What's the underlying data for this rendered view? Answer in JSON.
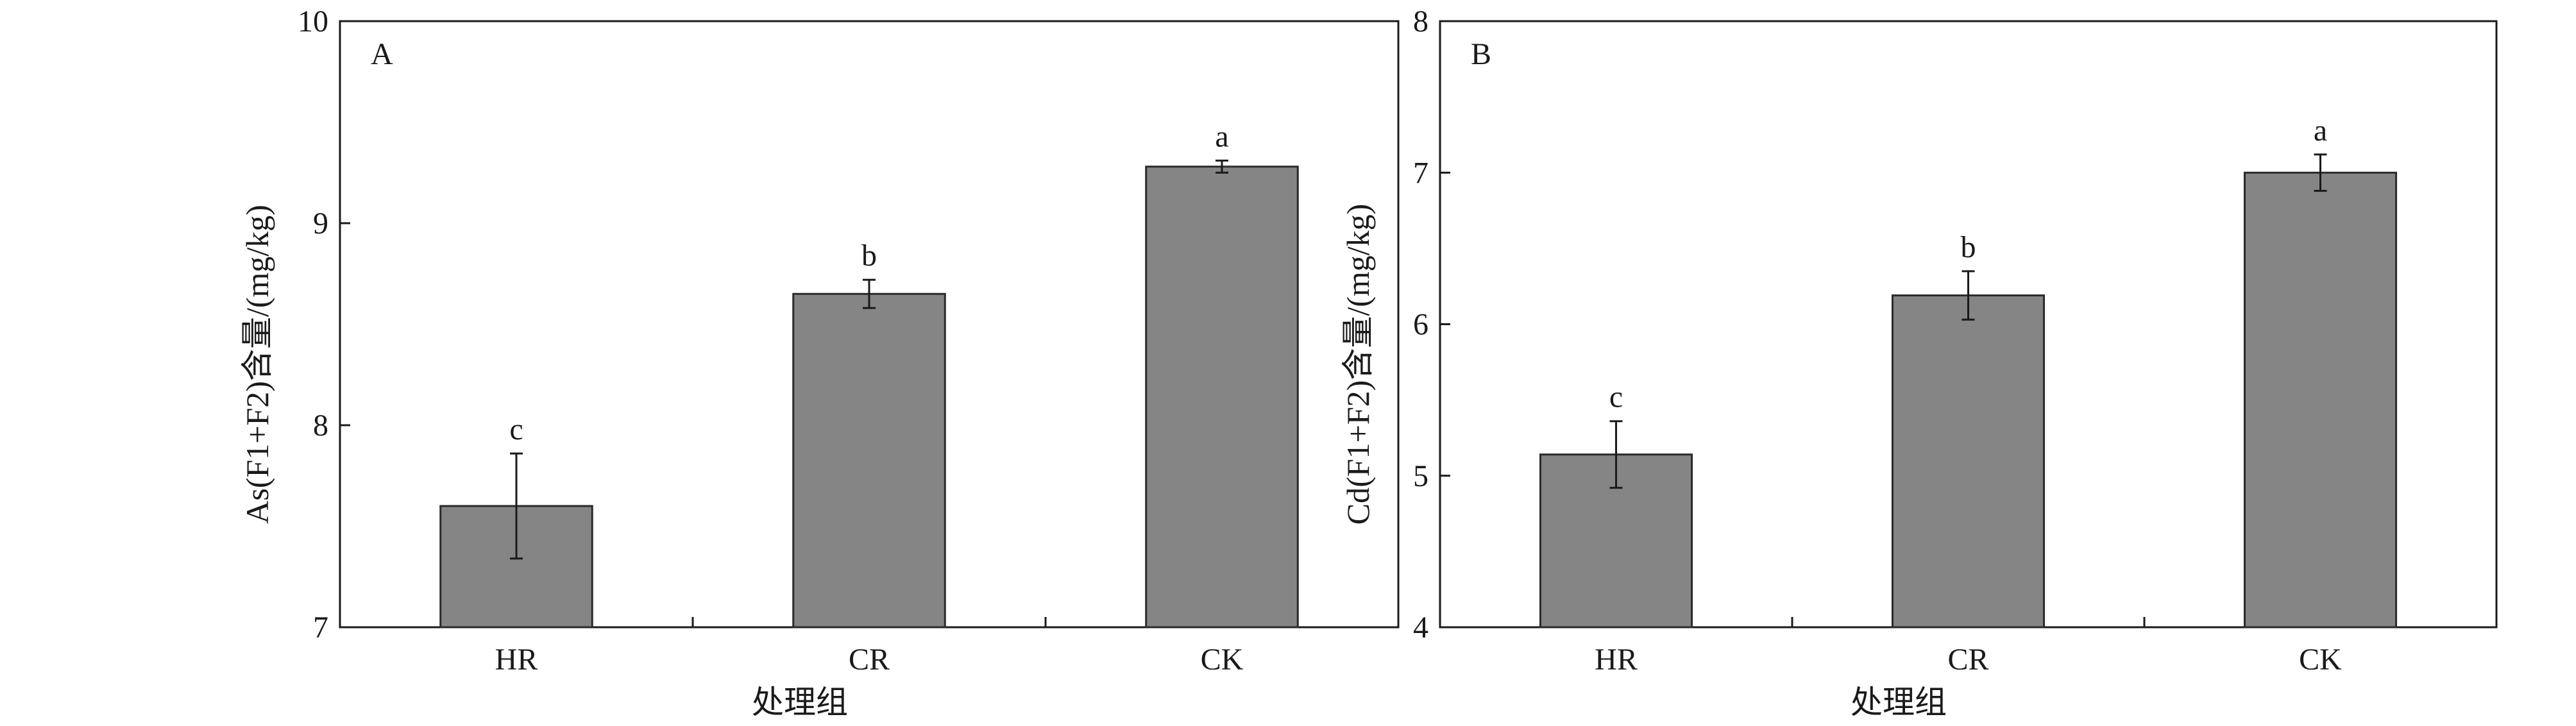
{
  "figure": {
    "bar_color": "#858585",
    "bar_edge": "#2a2a2a",
    "axis_color": "#1a1a1a"
  },
  "chart_data": [
    {
      "type": "bar",
      "panel_label": "A",
      "title": "",
      "categories": [
        "HR",
        "CR",
        "CK"
      ],
      "values": [
        7.6,
        8.65,
        9.28
      ],
      "errors": [
        0.26,
        0.07,
        0.03
      ],
      "letters": [
        "c",
        "b",
        "a"
      ],
      "xlabel": "处理组",
      "ylabel": "As(F1+F2)含量/(mg/kg)",
      "ylim": [
        7,
        10
      ],
      "yticks": [
        7,
        8,
        9,
        10
      ],
      "grid": false,
      "legend": "none"
    },
    {
      "type": "bar",
      "panel_label": "B",
      "title": "",
      "categories": [
        "HR",
        "CR",
        "CK"
      ],
      "values": [
        5.14,
        6.19,
        7.0
      ],
      "errors": [
        0.22,
        0.16,
        0.12
      ],
      "letters": [
        "c",
        "b",
        "a"
      ],
      "xlabel": "处理组",
      "ylabel": "Cd(F1+F2)含量/(mg/kg)",
      "ylim": [
        4,
        8
      ],
      "yticks": [
        4,
        5,
        6,
        7,
        8
      ],
      "grid": false,
      "legend": "none"
    }
  ]
}
